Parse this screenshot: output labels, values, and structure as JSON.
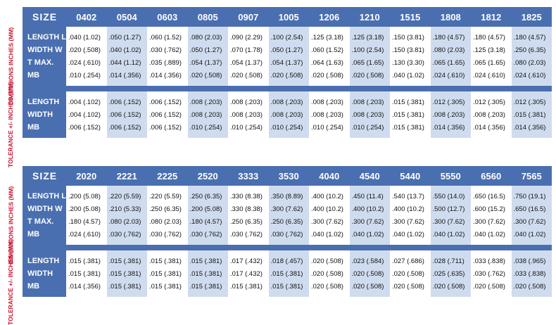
{
  "side_labels": {
    "dimensions": "DIMENSIONS INCHES (MM)",
    "tolerance": "TOLERANCE +/- INCHES (MM)"
  },
  "tables": [
    {
      "header_label": "SIZE",
      "sizes": [
        "0402",
        "0504",
        "0603",
        "0805",
        "0907",
        "1005",
        "1206",
        "1210",
        "1515",
        "1808",
        "1812",
        "1825"
      ],
      "dimension_rows": [
        {
          "label": "LENGTH L",
          "values": [
            ".040 (1.02)",
            ".050 (1.27)",
            ".060 (1.52)",
            ".080 (2.03)",
            ".090 (2.29)",
            ".100 (2.54)",
            ".125 (3.18)",
            ".125 (3.18)",
            ".150 (3.81)",
            ".180 (4.57)",
            ".180 (4.57)",
            ".180 (4.57)"
          ]
        },
        {
          "label": "WIDTH W",
          "values": [
            ".020 (.508)",
            ".040 (1.02)",
            ".030 (.762)",
            ".050 (1.27)",
            ".070 (1.78)",
            ".050 (1.27)",
            ".060 (1.52)",
            ".100 (2.54)",
            ".150 (3.81)",
            ".080 (2.03)",
            ".125 (3.18)",
            ".250 (6.35)"
          ]
        },
        {
          "label": "T MAX.",
          "values": [
            ".024 (.610)",
            ".044 (1.12)",
            ".035 (.889)",
            ".054 (1.37)",
            ".054 (1.37)",
            ".054 (1.37)",
            ".064 (1.63)",
            ".065 (1.65)",
            ".130 (3.30)",
            ".065 (1.65)",
            ".065 (1.65)",
            ".080 (2.03)"
          ]
        },
        {
          "label": "MB",
          "values": [
            ".010 (.254)",
            ".014 (.356)",
            ".014 (.356)",
            ".020 (.508)",
            ".020 (.508)",
            ".020 (.508)",
            ".020 (.508)",
            ".020 (.508)",
            ".040 (1.02)",
            ".024 (.610)",
            ".024 (.610)",
            ".024 (.610)"
          ]
        }
      ],
      "tolerance_rows": [
        {
          "label": "LENGTH",
          "values": [
            ".004 (.102)",
            ".006 (.152)",
            ".006 (.152)",
            ".008 (.203)",
            ".008 (.203)",
            ".008 (.203)",
            ".008 (.203)",
            ".008 (.203)",
            ".015 (.381)",
            ".012 (.305)",
            ".012 (.305)",
            ".012 (.305)"
          ]
        },
        {
          "label": "WIDTH",
          "values": [
            ".004 (.102)",
            ".006 (.152)",
            ".006 (.152)",
            ".008 (.203)",
            ".008 (.203)",
            ".008 (.203)",
            ".008 (.203)",
            ".008 (.203)",
            ".015 (.381)",
            ".008 (.203)",
            ".008 (.203)",
            ".015 (.381)"
          ]
        },
        {
          "label": "MB",
          "values": [
            ".006 (.152)",
            ".006 (.152)",
            ".006 (.152)",
            ".010 (.254)",
            ".010 (.254)",
            ".010 (.254)",
            ".010 (.254)",
            ".010 (.254)",
            ".015 (.381)",
            ".014 (.356)",
            ".014 (.356)",
            ".014 (.356)"
          ]
        }
      ]
    },
    {
      "header_label": "SIZE",
      "sizes": [
        "2020",
        "2221",
        "2225",
        "2520",
        "3333",
        "3530",
        "4040",
        "4540",
        "5440",
        "5550",
        "6560",
        "7565"
      ],
      "dimension_rows": [
        {
          "label": "LENGTH L",
          "values": [
            ".200 (5.08)",
            ".220 (5.59)",
            ".220 (5.59)",
            ".250 (6.35)",
            ".330 (8.38)",
            ".350 (8.89)",
            ".400 (10.2)",
            ".450 (11.4)",
            ".540 (13.7)",
            ".550 (14.0)",
            ".650 (16.5)",
            ".750 (19.1)"
          ]
        },
        {
          "label": "WIDTH W",
          "values": [
            ".200 (5.08)",
            ".210 (5.33)",
            ".250 (6.35)",
            ".200 (5.08)",
            ".330 (8.38)",
            ".300 (7.62)",
            ".400 (10.2)",
            ".400 (10.2)",
            ".400 (10.2)",
            ".500 (12.7)",
            ".600 (15.2)",
            ".650 (16.5)"
          ]
        },
        {
          "label": "T MAX.",
          "values": [
            ".180 (4.57)",
            ".080 (2.03)",
            ".080 (2.03)",
            ".180 (4.57)",
            ".250 (6.35)",
            ".250 (6.35)",
            ".300 (7.62)",
            ".300 (7.62)",
            ".300 (7.62)",
            ".300 (7.62)",
            ".300 (7.62)",
            ".300 (7.62)"
          ]
        },
        {
          "label": "MB",
          "values": [
            ".024 (.610)",
            ".030 (.762)",
            ".030 (.762)",
            ".030 (.762)",
            ".030 (.762)",
            ".030 (.762)",
            ".040 (1.02)",
            ".040 (1.02)",
            ".040 (1.02)",
            ".040 (1.02)",
            ".040 (1.02)",
            ".040 (1.02)"
          ]
        }
      ],
      "tolerance_rows": [
        {
          "label": "LENGTH",
          "values": [
            ".015 (.381)",
            ".015 (.381)",
            ".015 (.381)",
            ".015 (.381)",
            ".017 (.432)",
            ".018 (.457)",
            ".020 (.508)",
            ".023 (.584)",
            ".027 (.686)",
            ".028 (.711)",
            ".033 (.838)",
            ".038 (.965)"
          ]
        },
        {
          "label": "WIDTH",
          "values": [
            ".015 (.381)",
            ".015 (.381)",
            ".015 (.381)",
            ".015 (.381)",
            ".017 (.432)",
            ".015 (.381)",
            ".020 (.508)",
            ".020 (.508)",
            ".020 (.508)",
            ".025 (.635)",
            ".030 (.762)",
            ".033 (.838)"
          ]
        },
        {
          "label": "MB",
          "values": [
            ".014 (.356)",
            ".015 (.381)",
            ".015 (.381)",
            ".015 (.381)",
            ".015 (.381)",
            ".015 (.381)",
            ".020 (.508)",
            ".020 (.508)",
            ".020 (.508)",
            ".020 (.508)",
            ".020 (.508)",
            ".020 (.508)"
          ]
        }
      ]
    }
  ]
}
